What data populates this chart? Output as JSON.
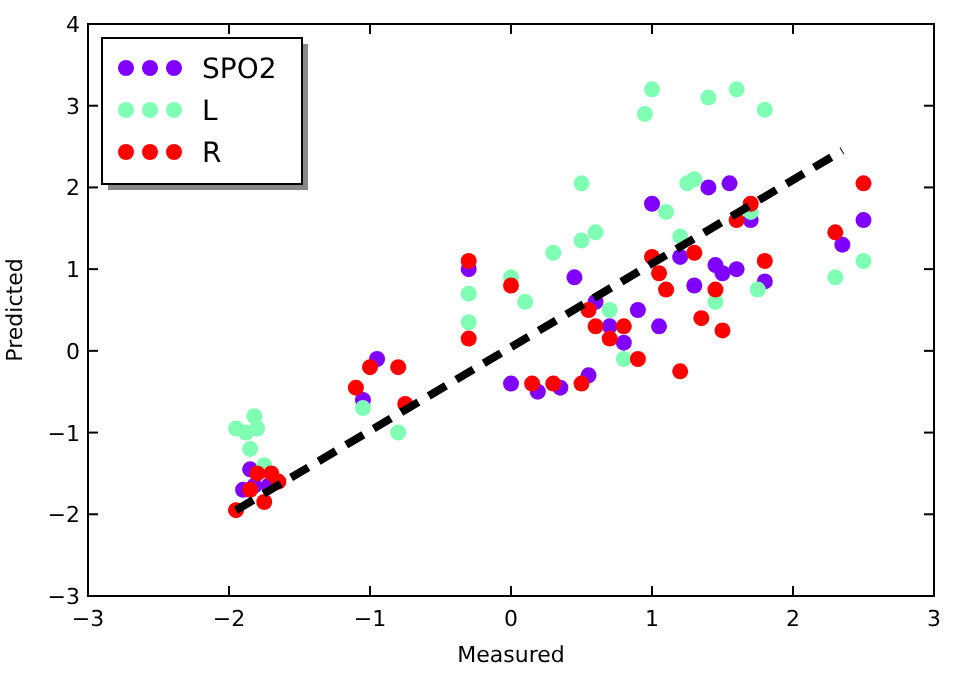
{
  "chart_data": {
    "type": "scatter",
    "xlabel": "Measured",
    "ylabel": "Predicted",
    "xlim": [
      -3,
      3
    ],
    "ylim": [
      -3,
      4
    ],
    "xticks": [
      {
        "value": -3,
        "label": "−3"
      },
      {
        "value": -2,
        "label": "−2"
      },
      {
        "value": -1,
        "label": "−1"
      },
      0,
      1,
      2,
      3
    ],
    "yticks": [
      {
        "value": -3,
        "label": "−3"
      },
      {
        "value": -2,
        "label": "−2"
      },
      {
        "value": -1,
        "label": "−1"
      },
      0,
      1,
      2,
      3,
      4
    ],
    "legend": "top left",
    "grid": false,
    "marker": "circle",
    "series": [
      {
        "name": "SPO2",
        "color": "#8000ff",
        "x": [
          -1.9,
          -1.85,
          -1.82,
          -1.72,
          -1.05,
          -0.95,
          -0.3,
          0,
          0.19,
          0.35,
          0.45,
          0.55,
          0.6,
          0.7,
          0.8,
          0.9,
          1.0,
          1.05,
          1.2,
          1.3,
          1.4,
          1.45,
          1.5,
          1.6,
          1.7,
          1.8,
          1.55,
          2.35,
          2.5
        ],
        "values": [
          -1.7,
          -1.45,
          -1.65,
          -1.65,
          -0.6,
          -0.1,
          1.0,
          -0.4,
          -0.5,
          -0.45,
          0.9,
          -0.3,
          0.6,
          0.3,
          0.1,
          0.5,
          1.8,
          0.3,
          1.15,
          0.8,
          2.0,
          1.05,
          0.95,
          1.0,
          1.6,
          0.85,
          2.05,
          1.3,
          1.6
        ]
      },
      {
        "name": "L",
        "color": "#80ffb4",
        "x": [
          -1.95,
          -1.88,
          -1.82,
          -1.8,
          -1.85,
          -1.75,
          -1.05,
          -0.8,
          -0.3,
          -0.3,
          0,
          0.1,
          0.3,
          0.5,
          0.5,
          0.6,
          0.7,
          0.8,
          0.95,
          1.0,
          1.1,
          1.2,
          1.25,
          1.3,
          1.4,
          1.6,
          1.7,
          1.8,
          1.45,
          1.75,
          2.3,
          2.5
        ],
        "values": [
          -0.95,
          -1.0,
          -0.8,
          -0.95,
          -1.2,
          -1.4,
          -0.7,
          -1.0,
          0.35,
          0.7,
          0.9,
          0.6,
          1.2,
          2.05,
          1.35,
          1.45,
          0.5,
          -0.1,
          2.9,
          3.2,
          1.7,
          1.4,
          2.05,
          2.1,
          3.1,
          3.2,
          1.7,
          2.95,
          0.6,
          0.75,
          0.9,
          1.1
        ]
      },
      {
        "name": "R",
        "color": "#ff0000",
        "x": [
          -1.95,
          -1.85,
          -1.8,
          -1.75,
          -1.7,
          -1.65,
          -1.1,
          -1.0,
          -0.8,
          -0.75,
          -0.3,
          -0.3,
          0,
          0.15,
          0.3,
          0.5,
          0.55,
          0.6,
          0.7,
          0.8,
          0.9,
          1.0,
          1.05,
          1.1,
          1.2,
          1.3,
          1.35,
          1.45,
          1.5,
          1.6,
          1.7,
          1.8,
          2.3,
          2.5
        ],
        "values": [
          -1.95,
          -1.7,
          -1.5,
          -1.85,
          -1.5,
          -1.6,
          -0.45,
          -0.2,
          -0.2,
          -0.65,
          1.1,
          0.15,
          0.8,
          -0.4,
          -0.4,
          -0.4,
          0.5,
          0.3,
          0.15,
          0.3,
          -0.1,
          1.15,
          0.95,
          0.75,
          -0.25,
          1.2,
          0.4,
          0.75,
          0.25,
          1.6,
          1.8,
          1.1,
          1.45,
          2.05
        ]
      },
      {
        "type": "line",
        "color": "#000000",
        "line_style": "dashed",
        "marker": "none",
        "x": [
          -1.95,
          2.35
        ],
        "values": [
          -1.95,
          2.45
        ]
      }
    ]
  }
}
